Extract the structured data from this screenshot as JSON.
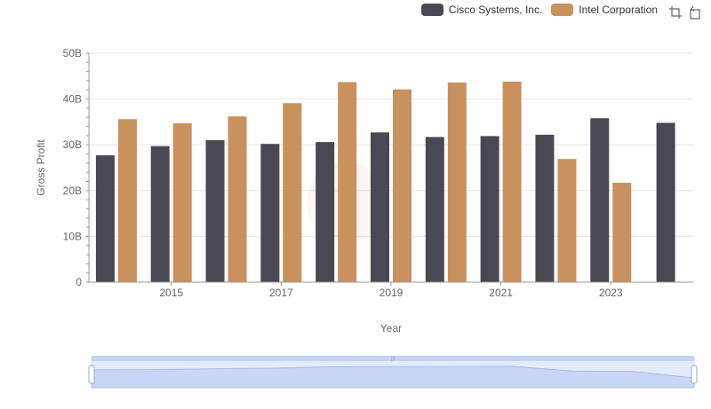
{
  "legend": {
    "items": [
      {
        "name": "Cisco Systems, Inc.",
        "color": "#4a4853"
      },
      {
        "name": "Intel Corporation",
        "color": "#c8915e"
      }
    ]
  },
  "toolbox": {
    "icons": [
      "zoom-icon",
      "restore-icon"
    ]
  },
  "chart_data": {
    "type": "bar",
    "title": "",
    "xlabel": "Year",
    "ylabel": "Gross Profit",
    "categories": [
      "2014",
      "2015",
      "2016",
      "2017",
      "2018",
      "2019",
      "2020",
      "2021",
      "2022",
      "2023",
      "2024"
    ],
    "x_tick_labels": [
      "2015",
      "2017",
      "2019",
      "2021",
      "2023"
    ],
    "y_tick_labels": [
      "0",
      "10B",
      "20B",
      "30B",
      "40B",
      "50B"
    ],
    "ylim": [
      0,
      50
    ],
    "y_unit": "B",
    "series": [
      {
        "name": "Cisco Systems, Inc.",
        "color": "#4a4853",
        "values": [
          27.7,
          29.7,
          31.0,
          30.2,
          30.6,
          32.7,
          31.7,
          31.9,
          32.2,
          35.8,
          34.8
        ]
      },
      {
        "name": "Intel Corporation",
        "color": "#c8915e",
        "values": [
          35.6,
          34.7,
          36.2,
          39.1,
          43.7,
          42.1,
          43.6,
          43.8,
          26.9,
          21.7,
          null
        ]
      }
    ],
    "grid": true,
    "legend_position": "top-right",
    "has_data_zoom": true
  }
}
